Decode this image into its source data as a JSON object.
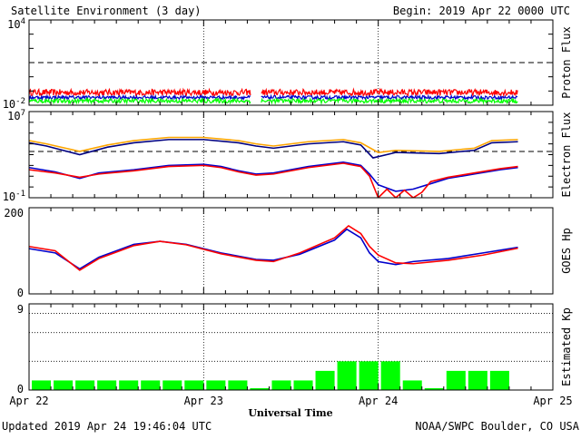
{
  "header": {
    "title": "Satellite Environment (3 day)",
    "begin": "Begin:  2019 Apr 22 0000 UTC"
  },
  "footer": {
    "updated": "Updated 2019 Apr 24 19:46:04 UTC",
    "credit": "NOAA/SWPC Boulder, CO USA",
    "xlabel": "Universal Time"
  },
  "colors": {
    "red": "#ff0000",
    "blue": "#0000cc",
    "green": "#00ff00",
    "orange": "#ffa500",
    "navy": "#000080"
  },
  "chart_data": [
    {
      "name": "Proton Flux",
      "type": "line",
      "ylabel": "Proton Flux",
      "scale": "log",
      "ylim_exp": [
        -2,
        4
      ],
      "tick_top": "10",
      "tick_top_exp": "4",
      "tick_bottom": "10",
      "tick_bottom_exp": "-2",
      "threshold_exp": 1,
      "gap_days": [
        1.27,
        1.33
      ],
      "series": [
        {
          "color": "red",
          "level_exp": -1.1,
          "noise": 0.22
        },
        {
          "color": "blue",
          "level_exp": -1.45,
          "noise": 0.12
        },
        {
          "color": "green",
          "level_exp": -1.7,
          "noise": 0.15
        }
      ]
    },
    {
      "name": "Electron Flux",
      "type": "line",
      "ylabel": "Electron Flux",
      "scale": "log",
      "ylim_exp": [
        -1,
        7
      ],
      "tick_top": "10",
      "tick_top_exp": "7",
      "tick_bottom": "10",
      "tick_bottom_exp": "-1",
      "threshold_exp": 3.3,
      "series": [
        {
          "color": "orange",
          "points": [
            [
              0,
              4.3
            ],
            [
              0.1,
              4.0
            ],
            [
              0.29,
              3.3
            ],
            [
              0.45,
              3.9
            ],
            [
              0.6,
              4.3
            ],
            [
              0.8,
              4.6
            ],
            [
              1.0,
              4.6
            ],
            [
              1.2,
              4.3
            ],
            [
              1.3,
              4.0
            ],
            [
              1.4,
              3.8
            ],
            [
              1.6,
              4.2
            ],
            [
              1.8,
              4.4
            ],
            [
              1.9,
              4.1
            ],
            [
              2.0,
              3.2
            ],
            [
              2.1,
              3.4
            ],
            [
              2.35,
              3.3
            ],
            [
              2.55,
              3.6
            ],
            [
              2.65,
              4.3
            ],
            [
              2.8,
              4.4
            ]
          ]
        },
        {
          "color": "navy",
          "points": [
            [
              0,
              4.1
            ],
            [
              0.1,
              3.8
            ],
            [
              0.29,
              3.0
            ],
            [
              0.45,
              3.7
            ],
            [
              0.6,
              4.1
            ],
            [
              0.8,
              4.4
            ],
            [
              1.0,
              4.4
            ],
            [
              1.2,
              4.1
            ],
            [
              1.3,
              3.8
            ],
            [
              1.4,
              3.6
            ],
            [
              1.6,
              4.0
            ],
            [
              1.8,
              4.2
            ],
            [
              1.9,
              3.9
            ],
            [
              1.97,
              2.7
            ],
            [
              2.1,
              3.2
            ],
            [
              2.35,
              3.1
            ],
            [
              2.55,
              3.4
            ],
            [
              2.65,
              4.1
            ],
            [
              2.8,
              4.2
            ]
          ]
        },
        {
          "color": "blue",
          "points": [
            [
              0,
              1.8
            ],
            [
              0.15,
              1.4
            ],
            [
              0.29,
              0.8
            ],
            [
              0.4,
              1.3
            ],
            [
              0.6,
              1.6
            ],
            [
              0.8,
              2.0
            ],
            [
              1.0,
              2.1
            ],
            [
              1.1,
              1.9
            ],
            [
              1.2,
              1.5
            ],
            [
              1.3,
              1.2
            ],
            [
              1.4,
              1.3
            ],
            [
              1.6,
              1.9
            ],
            [
              1.8,
              2.3
            ],
            [
              1.9,
              2.0
            ],
            [
              1.95,
              1.2
            ],
            [
              2.0,
              0.2
            ],
            [
              2.1,
              -0.4
            ],
            [
              2.2,
              -0.2
            ],
            [
              2.3,
              0.3
            ],
            [
              2.4,
              0.8
            ],
            [
              2.55,
              1.2
            ],
            [
              2.7,
              1.6
            ],
            [
              2.8,
              1.8
            ]
          ]
        },
        {
          "color": "red",
          "points": [
            [
              0,
              1.6
            ],
            [
              0.15,
              1.3
            ],
            [
              0.29,
              0.9
            ],
            [
              0.4,
              1.2
            ],
            [
              0.6,
              1.5
            ],
            [
              0.8,
              1.9
            ],
            [
              1.0,
              2.0
            ],
            [
              1.1,
              1.8
            ],
            [
              1.2,
              1.4
            ],
            [
              1.3,
              1.1
            ],
            [
              1.4,
              1.2
            ],
            [
              1.6,
              1.8
            ],
            [
              1.8,
              2.2
            ],
            [
              1.9,
              1.9
            ],
            [
              1.95,
              1.0
            ],
            [
              2.0,
              -1.0
            ],
            [
              2.05,
              -0.2
            ],
            [
              2.1,
              -1.0
            ],
            [
              2.15,
              -0.3
            ],
            [
              2.2,
              -1.0
            ],
            [
              2.25,
              -0.5
            ],
            [
              2.3,
              0.5
            ],
            [
              2.4,
              0.9
            ],
            [
              2.55,
              1.3
            ],
            [
              2.7,
              1.7
            ],
            [
              2.8,
              1.9
            ]
          ]
        }
      ]
    },
    {
      "name": "GOES Hp",
      "type": "line",
      "ylabel": "GOES Hp",
      "scale": "linear",
      "ylim": [
        0,
        200
      ],
      "ticks": [
        "0",
        "200"
      ],
      "series": [
        {
          "color": "blue",
          "points": [
            [
              0,
              105
            ],
            [
              0.15,
              95
            ],
            [
              0.29,
              58
            ],
            [
              0.4,
              85
            ],
            [
              0.6,
              115
            ],
            [
              0.75,
              122
            ],
            [
              0.9,
              115
            ],
            [
              1.1,
              95
            ],
            [
              1.3,
              80
            ],
            [
              1.4,
              78
            ],
            [
              1.55,
              92
            ],
            [
              1.75,
              125
            ],
            [
              1.82,
              150
            ],
            [
              1.9,
              130
            ],
            [
              1.95,
              95
            ],
            [
              2.0,
              75
            ],
            [
              2.1,
              68
            ],
            [
              2.2,
              75
            ],
            [
              2.4,
              82
            ],
            [
              2.6,
              95
            ],
            [
              2.8,
              108
            ]
          ]
        },
        {
          "color": "red",
          "points": [
            [
              0,
              110
            ],
            [
              0.15,
              100
            ],
            [
              0.29,
              55
            ],
            [
              0.4,
              82
            ],
            [
              0.6,
              112
            ],
            [
              0.75,
              122
            ],
            [
              0.9,
              114
            ],
            [
              1.1,
              93
            ],
            [
              1.3,
              78
            ],
            [
              1.4,
              75
            ],
            [
              1.55,
              95
            ],
            [
              1.75,
              130
            ],
            [
              1.83,
              158
            ],
            [
              1.9,
              140
            ],
            [
              1.95,
              110
            ],
            [
              2.0,
              90
            ],
            [
              2.1,
              72
            ],
            [
              2.2,
              70
            ],
            [
              2.4,
              78
            ],
            [
              2.6,
              90
            ],
            [
              2.8,
              106
            ]
          ]
        }
      ]
    },
    {
      "name": "Estimated Kp",
      "type": "bar",
      "ylabel": "Estimated Kp",
      "ylim": [
        0,
        9
      ],
      "ticks": [
        "0",
        "9"
      ],
      "gridlines": [
        3,
        6,
        8
      ],
      "bar_color": "green",
      "values": [
        1,
        1,
        1,
        1,
        1,
        1,
        1,
        1,
        1,
        1,
        0,
        1,
        1,
        2,
        3,
        3,
        3,
        1,
        0,
        2,
        2,
        2
      ]
    }
  ],
  "xaxis": {
    "days": 3,
    "tick_labels": [
      "Apr 22",
      "Apr 23",
      "Apr 24",
      "Apr 25"
    ],
    "marker_days": [
      1,
      2
    ]
  }
}
